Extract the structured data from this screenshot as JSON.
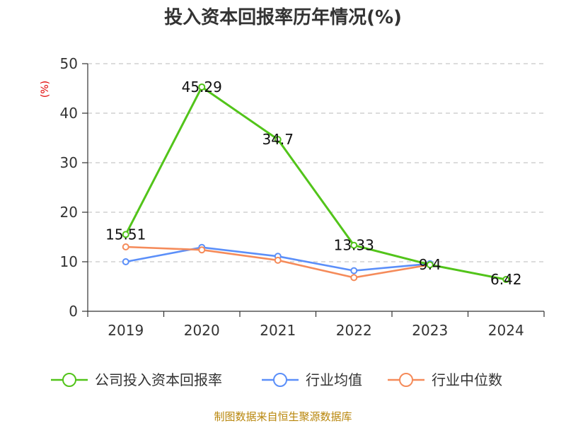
{
  "chart_data": {
    "type": "line",
    "title": "投入资本回报率历年情况(%)",
    "ylabel": "(%)",
    "xlabel": "",
    "categories": [
      "2019",
      "2020",
      "2021",
      "2022",
      "2023",
      "2024"
    ],
    "ylim": [
      0,
      50
    ],
    "yticks": [
      "0",
      "10",
      "20",
      "30",
      "40",
      "50"
    ],
    "grid": true,
    "legend_position": "bottom",
    "series": [
      {
        "name": "公司投入资本回报率",
        "color": "#52c41a",
        "values": [
          15.51,
          45.29,
          34.7,
          13.33,
          9.4,
          6.42
        ],
        "labels": [
          "15.51",
          "45.29",
          "34.7",
          "13.33",
          "9.4",
          "6.42"
        ]
      },
      {
        "name": "行业均值",
        "color": "#5b8ff9",
        "values": [
          10.0,
          12.9,
          11.1,
          8.2,
          9.6,
          null
        ]
      },
      {
        "name": "行业中位数",
        "color": "#f58b5a",
        "values": [
          13.0,
          12.4,
          10.3,
          6.8,
          9.4,
          null
        ]
      }
    ]
  },
  "footer": {
    "source": "制图数据来自恒生聚源数据库"
  }
}
